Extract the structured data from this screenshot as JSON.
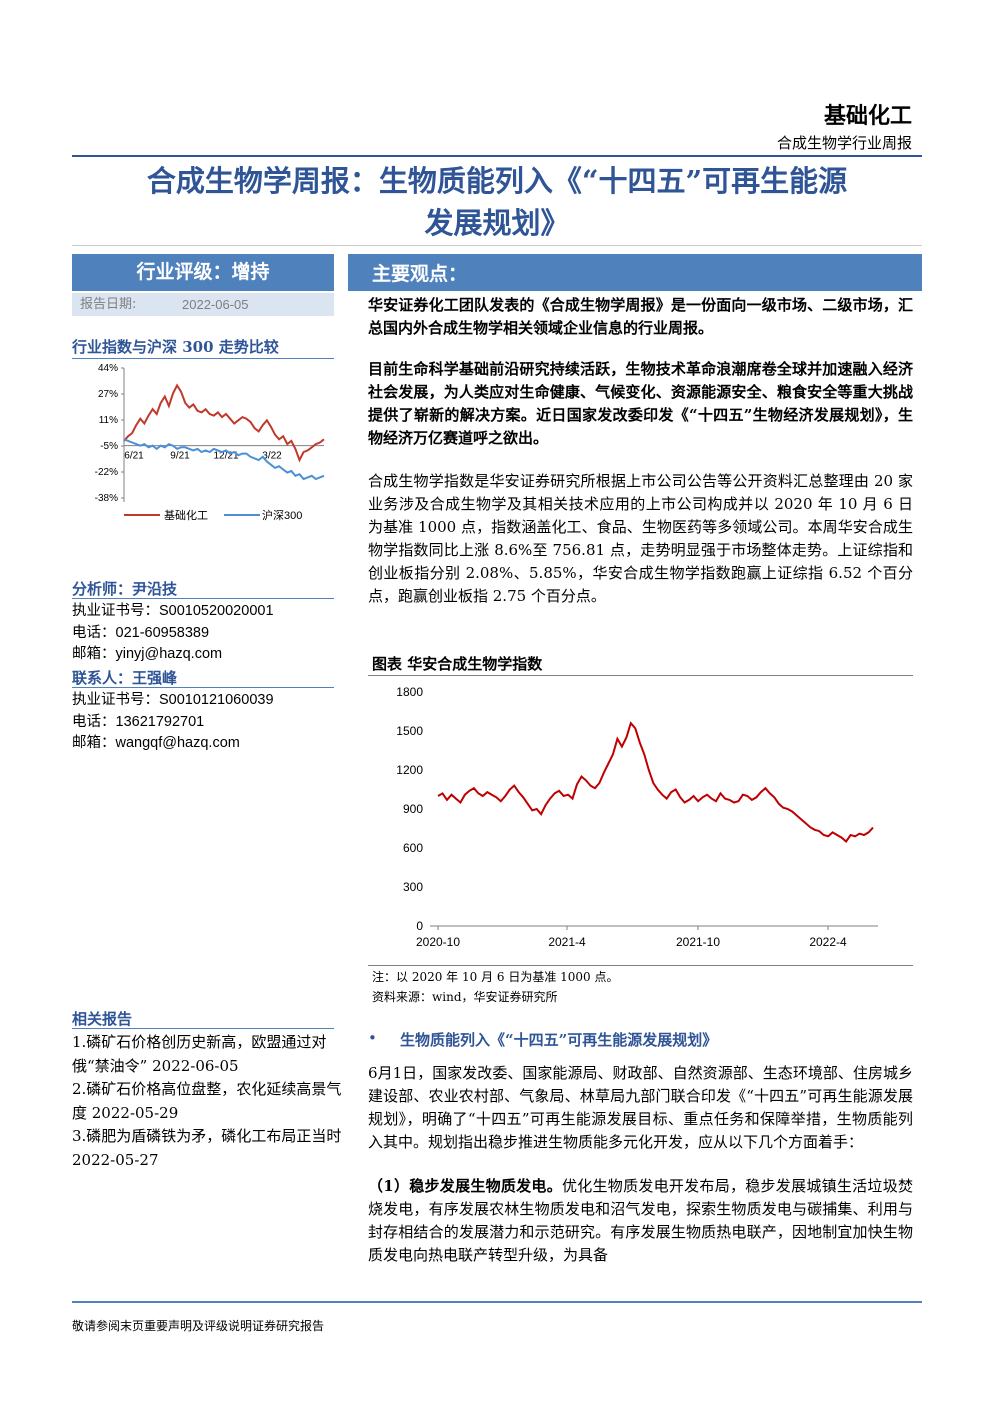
{
  "header": {
    "sector": "基础化工",
    "report_type": "合成生物学行业周报",
    "title_line1": "合成生物学周报：生物质能列入《“十四五”可再生能源",
    "title_line2": "发展规划》"
  },
  "sidebar": {
    "rating_label": "行业评级：增持",
    "report_date_label": "报告日期:",
    "report_date": "2022-06-05",
    "compare_title": "行业指数与沪深 300 走势比较",
    "analyst_title": "分析师：尹沿技",
    "analyst_cert_label": "执业证书号：",
    "analyst_cert": "S0010520020001",
    "analyst_phone_label": "电话：",
    "analyst_phone": "021-60958389",
    "analyst_email_label": "邮箱：",
    "analyst_email": "yinyj@hazq.com",
    "contact_title": "联系人：王强峰",
    "contact_cert_label": "执业证书号：",
    "contact_cert": "S0010121060039",
    "contact_phone_label": "电话：",
    "contact_phone": "13621792701",
    "contact_email_label": "邮箱：",
    "contact_email": "wangqf@hazq.com",
    "related_title": "相关报告",
    "related": [
      "1.磷矿石价格创历史新高，欧盟通过对俄“禁油令” 2022-06-05",
      "2.磷矿石价格高位盘整，农化延续高景气度 2022-05-29",
      "3.磷肥为盾磷铁为矛，磷化工布局正当时 2022-05-27"
    ]
  },
  "main": {
    "section_label": "主要观点：",
    "para1": "华安证券化工团队发表的《合成生物学周报》是一份面向一级市场、二级市场，汇总国内外合成生物学相关领域企业信息的行业周报。",
    "para2": "目前生命科学基础前沿研究持续活跃，生物技术革命浪潮席卷全球并加速融入经济社会发展，为人类应对生命健康、气候变化、资源能源安全、粮食安全等重大挑战提供了崭新的解决方案。近日国家发改委印发《“十四五”生物经济发展规划》，生物经济万亿赛道呼之欲出。",
    "para3": "合成生物学指数是华安证券研究所根据上市公司公告等公开资料汇总整理由 20 家业务涉及合成生物学及其相关技术应用的上市公司构成并以 2020 年 10 月 6 日为基准 1000 点，指数涵盖化工、食品、生物医药等多领域公司。本周华安合成生物学指数同比上涨 8.6%至 756.81 点，走势明显强于市场整体走势。上证综指和创业板指分别 2.08%、5.85%，华安合成生物学指数跑赢上证综指 6.52 个百分点，跑赢创业板指 2.75 个百分点。",
    "figure_title": "图表 华安合成生物学指数",
    "figure_note": "注：以 2020 年 10 月 6 日为基准 1000 点。",
    "figure_source": "资料来源：wind，华安证券研究所",
    "bullet_heading": "生物质能列入《“十四五”可再生能源发展规划》",
    "para4": "6月1日，国家发改委、国家能源局、财政部、自然资源部、生态环境部、住房城乡建设部、农业农村部、气象局、林草局九部门联合印发《“十四五”可再生能源发展规划》，明确了“十四五”可再生能源发展目标、重点任务和保障举措，生物质能列入其中。规划指出稳步推进生物质能多元化开发，应从以下几个方面着手：",
    "para5_bold": "（1）稳步发展生物质发电。",
    "para5_rest": "优化生物质发电开发布局，稳步发展城镇生活垃圾焚烧发电，有序发展农林生物质发电和沼气发电，探索生物质发电与碳捕集、利用与封存相结合的发展潜力和示范研究。有序发展生物质热电联产，因地制宜加快生物质发电向热电联产转型升级，为具备"
  },
  "footer": {
    "disclaimer": "敬请参阅末页重要声明及评级说明证券研究报告"
  },
  "colors": {
    "brand_blue": "#2f5597",
    "header_fill": "#4f81bd",
    "light_fill": "#dbe5f1",
    "industry_line": "#c0392b",
    "hs300_line": "#4a90d9"
  },
  "chart_data": [
    {
      "type": "line",
      "title": "行业指数与沪深 300 走势比较",
      "x_tick_labels": [
        "6/21",
        "9/21",
        "12/21",
        "3/22"
      ],
      "y_tick_labels": [
        "44%",
        "27%",
        "11%",
        "-5%",
        "-22%",
        "-38%"
      ],
      "ylim": [
        -38,
        44
      ],
      "legend_position": "bottom",
      "series": [
        {
          "name": "基础化工",
          "color": "#c0392b",
          "values": [
            -2,
            1,
            3,
            8,
            12,
            9,
            14,
            18,
            15,
            22,
            26,
            20,
            28,
            33,
            29,
            22,
            19,
            21,
            17,
            16,
            18,
            15,
            14,
            16,
            13,
            15,
            12,
            9,
            11,
            13,
            12,
            10,
            6,
            4,
            8,
            11,
            7,
            2,
            -1,
            1,
            -4,
            -2,
            -7,
            -14,
            -9,
            -8,
            -6,
            -4,
            -3,
            -1
          ]
        },
        {
          "name": "沪深300",
          "color": "#4a90d9",
          "values": [
            -1,
            -2,
            -3,
            -4,
            -5,
            -4,
            -6,
            -5,
            -7,
            -5,
            -6,
            -4,
            -5,
            -7,
            -6,
            -6,
            -7,
            -8,
            -7,
            -9,
            -8,
            -9,
            -7,
            -8,
            -9,
            -8,
            -10,
            -9,
            -11,
            -10,
            -10,
            -12,
            -13,
            -14,
            -12,
            -15,
            -17,
            -19,
            -18,
            -20,
            -22,
            -21,
            -24,
            -23,
            -26,
            -25,
            -24,
            -26,
            -25,
            -24
          ]
        }
      ]
    },
    {
      "type": "line",
      "title": "华安合成生物学指数",
      "x_tick_labels": [
        "2020-10",
        "2021-4",
        "2021-10",
        "2022-4"
      ],
      "y_tick_labels": [
        "0",
        "300",
        "600",
        "900",
        "1200",
        "1500",
        "1800"
      ],
      "ylim": [
        0,
        1800
      ],
      "grid": false,
      "series": [
        {
          "name": "华安合成生物学指数",
          "color": "#c00000",
          "values": [
            1000,
            1020,
            970,
            1010,
            980,
            950,
            1010,
            1040,
            1060,
            1020,
            1000,
            1030,
            1010,
            990,
            960,
            1000,
            1050,
            1080,
            1030,
            990,
            940,
            890,
            900,
            860,
            930,
            980,
            1020,
            1040,
            1000,
            1010,
            980,
            1090,
            1150,
            1120,
            1080,
            1060,
            1100,
            1180,
            1250,
            1320,
            1440,
            1380,
            1450,
            1560,
            1520,
            1410,
            1320,
            1200,
            1100,
            1050,
            1010,
            980,
            1030,
            1050,
            990,
            950,
            970,
            1000,
            960,
            990,
            1010,
            980,
            960,
            1020,
            980,
            970,
            950,
            960,
            1010,
            1000,
            970,
            990,
            1030,
            1060,
            1020,
            990,
            940,
            910,
            900,
            880,
            850,
            820,
            790,
            760,
            740,
            730,
            700,
            690,
            720,
            700,
            680,
            650,
            700,
            690,
            710,
            700,
            720,
            757
          ]
        }
      ]
    }
  ]
}
